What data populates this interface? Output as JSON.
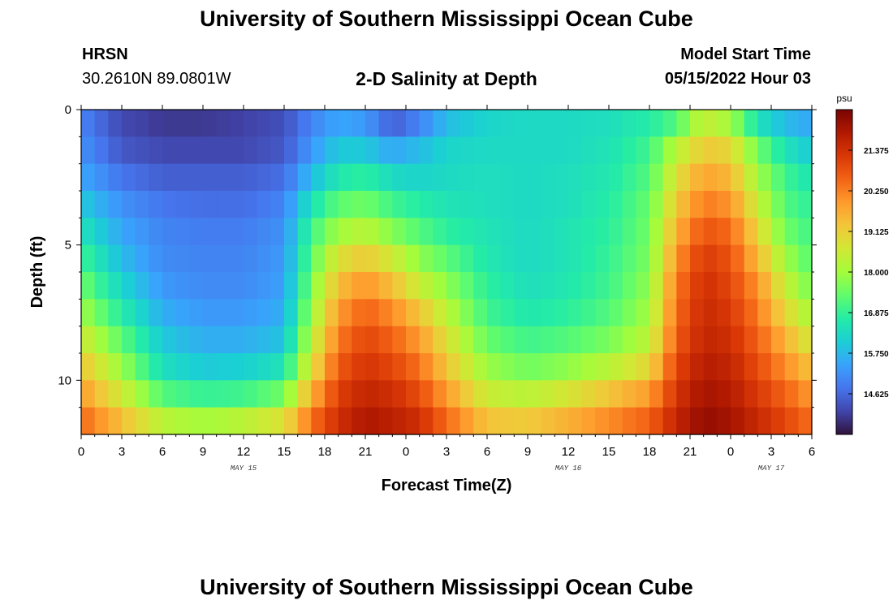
{
  "header": {
    "title": "University of Southern Mississippi Ocean Cube",
    "station": "HRSN",
    "coordinates": "30.2610N  89.0801W",
    "plot_title": "2-D Salinity at Depth",
    "model_start_label": "Model Start Time",
    "model_start_value": "05/15/2022 Hour 03"
  },
  "footer": {
    "title": "University of Southern Mississippi Ocean Cube"
  },
  "colors": {
    "colormap": [
      "#30123b",
      "#4145ab",
      "#4675ed",
      "#39a2fc",
      "#1bcfd4",
      "#24eca6",
      "#61fc6c",
      "#a4fc3b",
      "#d1e834",
      "#f3c63a",
      "#fe9b2d",
      "#f36315",
      "#d93806",
      "#b11901",
      "#7a0403"
    ],
    "frame": "#000000"
  },
  "chart_data": {
    "type": "heatmap",
    "title": "2-D Salinity at Depth",
    "xlabel": "Forecast Time(Z)",
    "ylabel": "Depth (ft)",
    "x_unit": "hours since 05/15/2022 00Z",
    "xlim": [
      0,
      54
    ],
    "ylim": [
      12,
      0
    ],
    "x_tick_values": [
      0,
      3,
      6,
      9,
      12,
      15,
      18,
      21,
      24,
      27,
      30,
      33,
      36,
      39,
      42,
      45,
      48,
      51,
      54
    ],
    "x_tick_labels": [
      "0",
      "3",
      "6",
      "9",
      "12",
      "15",
      "18",
      "21",
      "0",
      "3",
      "6",
      "9",
      "12",
      "15",
      "18",
      "21",
      "0",
      "3",
      "6"
    ],
    "y_tick_values": [
      0,
      5,
      10
    ],
    "y_tick_labels": [
      "0",
      "5",
      "10"
    ],
    "date_labels": [
      {
        "x": 12,
        "label": "MAY 15"
      },
      {
        "x": 36,
        "label": "MAY 16"
      },
      {
        "x": 51,
        "label": "MAY 17"
      }
    ],
    "colorbar": {
      "unit": "psu",
      "range": [
        13.5,
        22.5
      ],
      "tick_values": [
        21.375,
        20.25,
        19.125,
        18.0,
        16.875,
        15.75,
        14.625
      ],
      "tick_labels": [
        "21.375",
        "20.250",
        "19.125",
        "18.000",
        "16.875",
        "15.750",
        "14.625"
      ]
    },
    "grid": {
      "depth_levels_ft": [
        0.5,
        1.5,
        2.5,
        3.5,
        4.5,
        5.5,
        6.5,
        7.5,
        8.5,
        9.5,
        10.5,
        11.5
      ],
      "time_step_hours": 1,
      "time_start_hour": 0,
      "time_count": 54,
      "keyframe_times": [
        0,
        3,
        6,
        9,
        12,
        15,
        17,
        19,
        21,
        23,
        25,
        27,
        30,
        33,
        36,
        39,
        42,
        44,
        46,
        48,
        50,
        52,
        54
      ],
      "keyframe_salinity_by_depth": [
        [
          15.0,
          14.2,
          14.0,
          14.0,
          14.1,
          14.3,
          15.0,
          15.5,
          15.3,
          14.5,
          15.0,
          15.8,
          16.2,
          16.3,
          16.3,
          16.4,
          16.7,
          17.2,
          18.5,
          18.0,
          16.5,
          15.8,
          15.5
        ],
        [
          15.2,
          14.4,
          14.2,
          14.2,
          14.2,
          14.4,
          15.3,
          16.0,
          16.0,
          15.5,
          15.8,
          16.2,
          16.3,
          16.3,
          16.3,
          16.5,
          17.0,
          18.3,
          19.2,
          19.0,
          17.5,
          16.5,
          16.0
        ],
        [
          15.5,
          14.8,
          14.5,
          14.5,
          14.5,
          14.7,
          15.8,
          16.6,
          16.8,
          16.3,
          16.2,
          16.3,
          16.4,
          16.3,
          16.4,
          16.6,
          17.2,
          18.8,
          19.8,
          19.5,
          18.0,
          17.0,
          16.5
        ],
        [
          16.0,
          15.2,
          14.8,
          14.7,
          14.7,
          15.0,
          16.5,
          17.3,
          17.5,
          17.0,
          16.7,
          16.5,
          16.4,
          16.3,
          16.4,
          16.7,
          17.4,
          19.2,
          20.3,
          20.0,
          18.5,
          17.2,
          16.8
        ],
        [
          16.5,
          15.5,
          15.0,
          14.9,
          14.9,
          15.2,
          17.0,
          18.0,
          18.3,
          17.7,
          17.2,
          16.8,
          16.5,
          16.3,
          16.5,
          16.8,
          17.5,
          19.6,
          20.8,
          20.5,
          19.0,
          17.5,
          17.0
        ],
        [
          17.0,
          15.8,
          15.1,
          15.0,
          15.0,
          15.3,
          17.3,
          18.8,
          19.2,
          18.6,
          17.8,
          17.3,
          16.6,
          16.3,
          16.5,
          16.9,
          17.6,
          20.0,
          21.2,
          20.8,
          19.5,
          18.0,
          17.2
        ],
        [
          17.5,
          16.2,
          15.3,
          15.1,
          15.1,
          15.4,
          17.6,
          19.4,
          20.0,
          19.4,
          18.5,
          17.8,
          16.8,
          16.4,
          16.6,
          17.0,
          17.8,
          20.3,
          21.4,
          21.0,
          20.0,
          18.5,
          17.5
        ],
        [
          18.0,
          16.7,
          15.6,
          15.3,
          15.3,
          15.6,
          17.9,
          19.9,
          20.6,
          20.1,
          19.3,
          18.3,
          17.0,
          16.6,
          16.8,
          17.2,
          18.0,
          20.5,
          21.5,
          21.2,
          20.3,
          19.0,
          18.0
        ],
        [
          18.6,
          17.3,
          16.0,
          15.6,
          15.6,
          15.9,
          18.3,
          20.3,
          21.0,
          20.6,
          19.9,
          18.8,
          17.4,
          17.0,
          17.2,
          17.6,
          18.3,
          20.7,
          21.6,
          21.4,
          20.6,
          19.6,
          18.6
        ],
        [
          19.3,
          17.9,
          16.4,
          16.0,
          16.1,
          16.5,
          18.8,
          20.7,
          21.3,
          21.0,
          20.4,
          19.3,
          17.9,
          17.5,
          17.8,
          18.3,
          19.0,
          21.0,
          21.8,
          21.6,
          20.9,
          20.1,
          19.3
        ],
        [
          19.9,
          18.6,
          17.2,
          16.9,
          17.0,
          17.5,
          19.6,
          21.1,
          21.6,
          21.4,
          20.9,
          19.9,
          18.5,
          18.3,
          18.7,
          19.3,
          19.9,
          21.3,
          22.0,
          21.8,
          21.2,
          20.6,
          19.9
        ],
        [
          20.5,
          19.4,
          18.3,
          18.0,
          18.3,
          18.8,
          20.4,
          21.4,
          21.9,
          21.7,
          21.4,
          20.5,
          19.3,
          19.2,
          19.6,
          20.1,
          20.6,
          21.6,
          22.2,
          22.0,
          21.5,
          21.0,
          20.4
        ]
      ]
    }
  }
}
